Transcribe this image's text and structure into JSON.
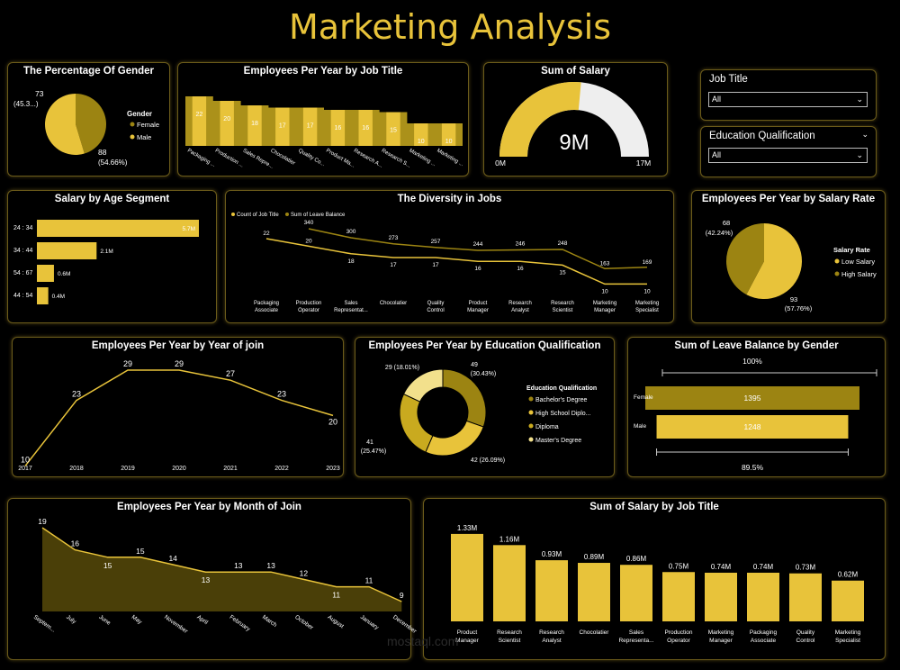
{
  "page": {
    "title": "Marketing Analysis"
  },
  "colors": {
    "bright": "#e8c33a",
    "dark": "#9c8412",
    "mid": "#c9aa1f",
    "light": "#f2e08c",
    "white": "#eeeeee"
  },
  "gender_pct": {
    "title": "The Percentage Of Gender",
    "legend_title": "Gender",
    "legend": [
      "Female",
      "Male"
    ],
    "label_female_value": "73",
    "label_female_pct": "(45.3...)",
    "label_male_value": "88",
    "label_male_pct": "(54.66%)",
    "chart_data": {
      "type": "pie",
      "categories": [
        "Female",
        "Male"
      ],
      "values": [
        73,
        88
      ]
    }
  },
  "emp_job": {
    "title": "Employees Per Year by Job Title",
    "chart_data": {
      "type": "area",
      "categories": [
        "Packaging ...",
        "Production ...",
        "Sales Repre...",
        "Chocolatier",
        "Quality Co...",
        "Product Ma...",
        "Research A...",
        "Research S...",
        "Marketing ...",
        "Marketing ..."
      ],
      "values": [
        22,
        20,
        18,
        17,
        17,
        16,
        16,
        15,
        10,
        10
      ]
    }
  },
  "sum_salary": {
    "title": "Sum of Salary",
    "value_label": "9M",
    "min_label": "0M",
    "max_label": "17M",
    "chart_data": {
      "type": "gauge",
      "value": 9,
      "min": 0,
      "max": 17
    }
  },
  "slicers": {
    "job_title": {
      "label": "Job Title",
      "value": "All"
    },
    "education": {
      "label": "Education Qualification",
      "value": "All"
    }
  },
  "age_segment": {
    "title": "Salary by Age Segment",
    "chart_data": {
      "type": "bar",
      "categories": [
        "24 : 34",
        "34 : 44",
        "54 : 67",
        "44 : 54"
      ],
      "values": [
        5.7,
        2.1,
        0.6,
        0.4
      ],
      "labels": [
        "5.7M",
        "2.1M",
        "0.6M",
        "0.4M"
      ]
    }
  },
  "diversity": {
    "title": "The Diversity in Jobs",
    "legend": [
      "Count of Job Title",
      "Sum of Leave Balance"
    ],
    "chart_data": {
      "type": "line",
      "categories": [
        "Packaging Associate",
        "Production Operator",
        "Sales Representat...",
        "Chocolatier",
        "Quality Control",
        "Product Manager",
        "Research Analyst",
        "Research Scientist",
        "Marketing Manager",
        "Marketing Specialist"
      ],
      "series": [
        {
          "name": "Count of Job Title",
          "values": [
            22,
            20,
            18,
            17,
            17,
            16,
            16,
            15,
            10,
            10
          ]
        },
        {
          "name": "Sum of Leave Balance",
          "values": [
            null,
            340,
            300,
            273,
            257,
            244,
            246,
            248,
            163,
            169
          ]
        }
      ]
    }
  },
  "salary_rate": {
    "title": "Employees Per Year by Salary Rate",
    "legend_title": "Salary Rate",
    "legend": [
      "Low Salary",
      "High Salary"
    ],
    "label_high_value": "68",
    "label_high_pct": "(42.24%)",
    "label_low_value": "93",
    "label_low_pct": "(57.76%)",
    "chart_data": {
      "type": "pie",
      "categories": [
        "Low Salary",
        "High Salary"
      ],
      "values": [
        93,
        68
      ]
    }
  },
  "year_join": {
    "title": "Employees Per Year by Year of join",
    "chart_data": {
      "type": "line",
      "categories": [
        "2017",
        "2018",
        "2019",
        "2020",
        "2021",
        "2022",
        "2023"
      ],
      "values": [
        10,
        23,
        29,
        29,
        27,
        23,
        20
      ]
    }
  },
  "education": {
    "title": "Employees Per Year by Education Qualification",
    "legend_title": "Education Qualification",
    "legend": [
      "Bachelor's Degree",
      "High School Diplo...",
      "Diploma",
      "Master's Degree"
    ],
    "label_bach": "49",
    "label_bach_pct": "(30.43%)",
    "label_hs": "42 (26.09%)",
    "label_dip": "41",
    "label_dip_pct": "(25.47%)",
    "label_mast": "29 (18.01%)",
    "chart_data": {
      "type": "pie",
      "categories": [
        "Bachelor's Degree",
        "High School Diplo...",
        "Diploma",
        "Master's Degree"
      ],
      "values": [
        49,
        42,
        41,
        29
      ]
    }
  },
  "leave_gender": {
    "title": "Sum of Leave Balance by Gender",
    "top_pct": "100%",
    "bottom_pct": "89.5%",
    "chart_data": {
      "type": "bar",
      "categories": [
        "Female",
        "Male"
      ],
      "values": [
        1395,
        1248
      ]
    }
  },
  "month_join": {
    "title": "Employees Per Year by Month of Join",
    "chart_data": {
      "type": "area",
      "categories": [
        "Septem...",
        "July",
        "June",
        "May",
        "November",
        "April",
        "February",
        "March",
        "October",
        "August",
        "January",
        "December"
      ],
      "values": [
        19,
        16,
        15,
        15,
        14,
        13,
        13,
        13,
        12,
        11,
        11,
        9
      ]
    }
  },
  "salary_job": {
    "title": "Sum of Salary by Job Title",
    "chart_data": {
      "type": "bar",
      "categories": [
        "Product Manager",
        "Research Scientist",
        "Research Analyst",
        "Chocolatier",
        "Sales Representa...",
        "Production Operator",
        "Marketing Manager",
        "Packaging Associate",
        "Quality Control",
        "Marketing Specialist"
      ],
      "values": [
        1.33,
        1.16,
        0.93,
        0.89,
        0.86,
        0.75,
        0.74,
        0.74,
        0.73,
        0.62
      ],
      "labels": [
        "1.33M",
        "1.16M",
        "0.93M",
        "0.89M",
        "0.86M",
        "0.75M",
        "0.74M",
        "0.74M",
        "0.73M",
        "0.62M"
      ]
    }
  },
  "watermark": {
    "text": "mostaql.com"
  }
}
